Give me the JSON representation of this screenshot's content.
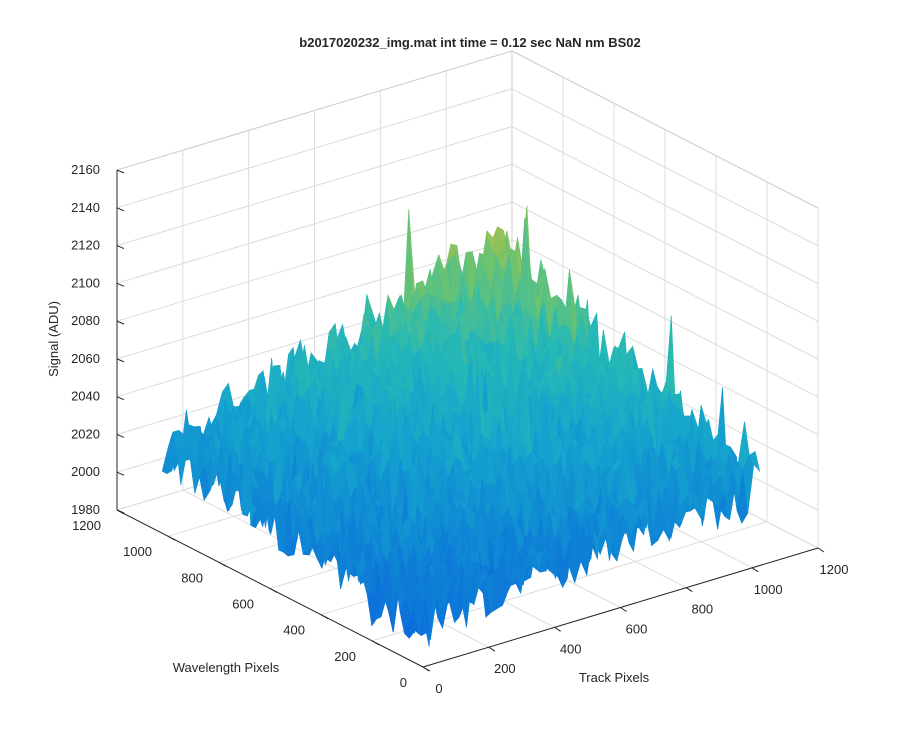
{
  "chart_data": {
    "type": "surface",
    "title": "b2017020232_img.mat int time = 0.12 sec  NaN nm BS02",
    "xlabel": "Track Pixels",
    "ylabel": "Wavelength Pixels",
    "zlabel": "Signal (ADU)",
    "xlim": [
      0,
      1200
    ],
    "ylim": [
      0,
      1200
    ],
    "zlim": [
      1980,
      2160
    ],
    "xticks": [
      0,
      200,
      400,
      600,
      800,
      1000,
      1200
    ],
    "yticks": [
      0,
      200,
      400,
      600,
      800,
      1000,
      1200
    ],
    "zticks": [
      1980,
      2000,
      2020,
      2040,
      2060,
      2080,
      2100,
      2120,
      2140,
      2160
    ],
    "x_labels": [
      "0",
      "200",
      "400",
      "600",
      "800",
      "1000",
      "1200"
    ],
    "y_labels": [
      "0",
      "200",
      "400",
      "600",
      "800",
      "1000",
      "1200"
    ],
    "z_labels": [
      "1980",
      "2000",
      "2020",
      "2040",
      "2060",
      "2080",
      "2100",
      "2120",
      "2140",
      "2160"
    ],
    "data_extent": {
      "x": [
        1,
        1024
      ],
      "y": [
        1,
        1024
      ]
    },
    "signal_model": {
      "corner_means": {
        "x0_y0": 2005,
        "xmax_y0": 2022,
        "x0_ymax": 2024,
        "xmax_ymax": 2080
      },
      "noise_amplitude": 16,
      "spike_max": 2150
    },
    "grid": true,
    "colormap": "parula",
    "colors": {
      "low": "#0e72d9",
      "mid": "#1fb3c9",
      "midhigh": "#8cc94a",
      "high": "#f2c83a",
      "axis": "#262626",
      "grid": "#dcdcdc"
    }
  }
}
